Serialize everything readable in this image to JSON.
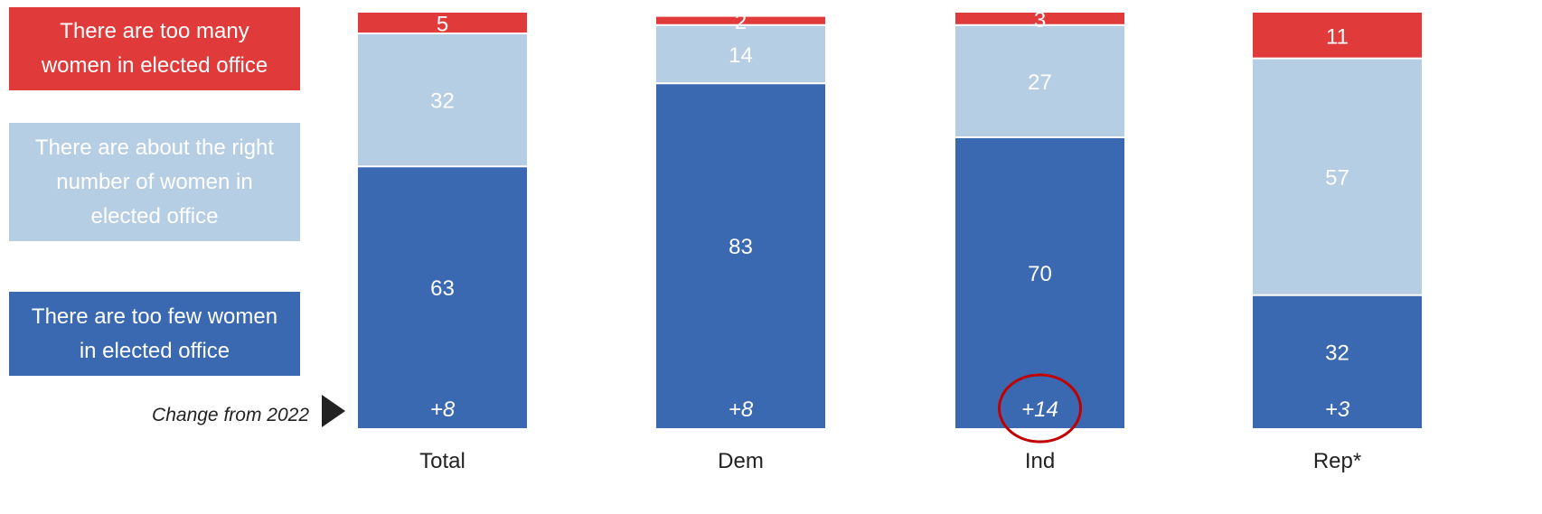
{
  "legend": {
    "too_many": "There are too many\nwomen in elected office",
    "about_right": "There are about the right\nnumber of women in\nelected office",
    "too_few": "There are too few women\nin elected office"
  },
  "change_label": "Change from 2022",
  "colors": {
    "too_few": "#3a69b2",
    "about_right": "#b6cee4",
    "too_many": "#e03a3a",
    "highlight_circle": "#c00000",
    "value_text": "#ffffff",
    "axis_text": "#222222"
  },
  "chart_data": {
    "type": "bar",
    "stacked": true,
    "categories": [
      "Total",
      "Dem",
      "Ind",
      "Rep*"
    ],
    "series": [
      {
        "name": "There are too few women in elected office",
        "values": [
          63,
          83,
          70,
          32
        ]
      },
      {
        "name": "There are about the right number of women in elected office",
        "values": [
          32,
          14,
          27,
          57
        ]
      },
      {
        "name": "There are too many women in elected office",
        "values": [
          5,
          2,
          3,
          11
        ]
      }
    ],
    "change_from_2022": [
      "+8",
      "+8",
      "+14",
      "+3"
    ],
    "highlighted_category": "Ind",
    "ylim": [
      0,
      100
    ],
    "grid": false
  }
}
